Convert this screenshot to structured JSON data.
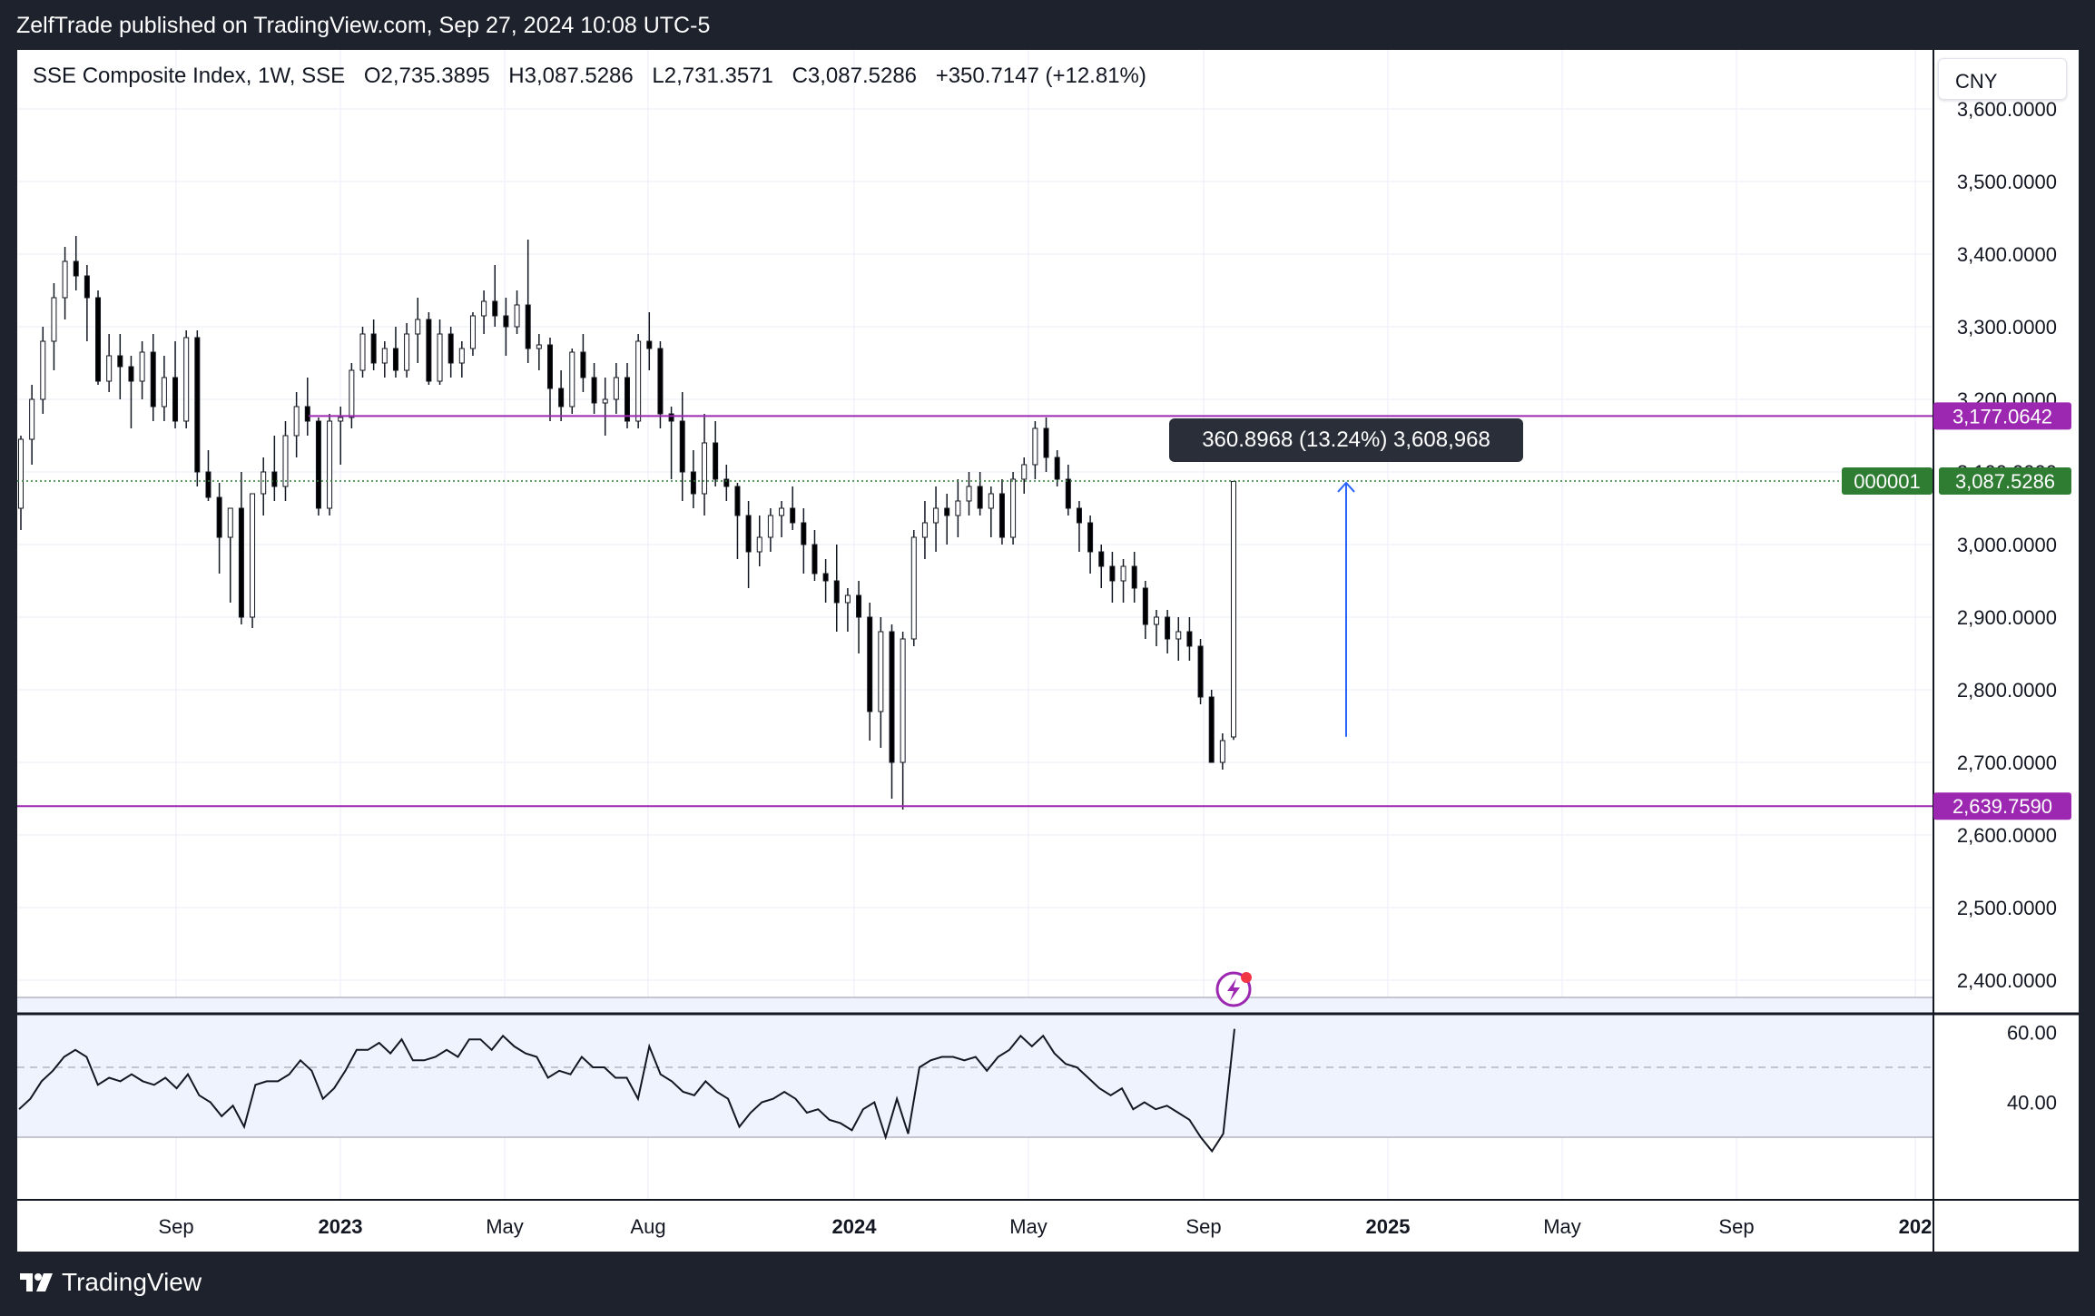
{
  "header": {
    "publish_line": "ZelfTrade published on TradingView.com, Sep 27, 2024 10:08 UTC-5"
  },
  "legend": {
    "symbol": "SSE Composite Index, 1W, SSE",
    "open": "O2,735.3895",
    "high": "H3,087.5286",
    "low": "L2,731.3571",
    "close": "C3,087.5286",
    "change": "+350.7147 (+12.81%)"
  },
  "currency": "CNY",
  "price_tags": {
    "resistance": "3,177.0642",
    "current": "3,087.5286",
    "current_countdown": "000001",
    "support": "2,639.7590"
  },
  "measure_tool": {
    "label": "360.8968 (13.24%) 3,608,968"
  },
  "footer": {
    "brand": "TradingView"
  },
  "colors": {
    "frame_bg": "#1e222d",
    "up_candle": "#ffffff",
    "down_candle": "#000000",
    "level_line": "#9c27b0",
    "current_price": "#2e7d32",
    "measure_arrow": "#2962ff",
    "rsi_band": "#eef3fd"
  },
  "chart_data": [
    {
      "type": "candlestick",
      "title": "SSE Composite Index, 1W, SSE",
      "ylim": [
        2370,
        3565
      ],
      "price_axis_ticks": [
        "3,600.0000",
        "3,500.0000",
        "3,400.0000",
        "3,300.0000",
        "3,200.0000",
        "3,100.0000",
        "3,000.0000",
        "2,900.0000",
        "2,800.0000",
        "2,700.0000",
        "2,600.0000",
        "2,500.0000",
        "2,400.0000"
      ],
      "time_axis_ticks": [
        {
          "label": "Sep",
          "major": false
        },
        {
          "label": "2023",
          "major": true
        },
        {
          "label": "May",
          "major": false
        },
        {
          "label": "Aug",
          "major": false
        },
        {
          "label": "2024",
          "major": true
        },
        {
          "label": "May",
          "major": false
        },
        {
          "label": "Sep",
          "major": false
        },
        {
          "label": "2025",
          "major": true
        },
        {
          "label": "May",
          "major": false
        },
        {
          "label": "Sep",
          "major": false
        },
        {
          "label": "202",
          "major": true
        }
      ],
      "horizontal_levels": [
        3177.0642,
        2639.759
      ],
      "current_price": 3087.5286,
      "candles": [
        [
          3050,
          3150,
          3020,
          3145
        ],
        [
          3145,
          3220,
          3110,
          3200
        ],
        [
          3200,
          3300,
          3180,
          3280
        ],
        [
          3280,
          3360,
          3240,
          3340
        ],
        [
          3340,
          3410,
          3310,
          3390
        ],
        [
          3390,
          3425,
          3350,
          3370
        ],
        [
          3370,
          3385,
          3280,
          3340
        ],
        [
          3340,
          3350,
          3220,
          3225
        ],
        [
          3225,
          3290,
          3210,
          3260
        ],
        [
          3260,
          3290,
          3200,
          3245
        ],
        [
          3245,
          3260,
          3160,
          3225
        ],
        [
          3225,
          3280,
          3200,
          3265
        ],
        [
          3265,
          3290,
          3170,
          3190
        ],
        [
          3190,
          3260,
          3170,
          3230
        ],
        [
          3230,
          3280,
          3160,
          3170
        ],
        [
          3170,
          3295,
          3160,
          3285
        ],
        [
          3285,
          3295,
          3080,
          3100
        ],
        [
          3100,
          3130,
          3060,
          3065
        ],
        [
          3065,
          3085,
          2960,
          3010
        ],
        [
          3010,
          3045,
          2920,
          3050
        ],
        [
          3050,
          3100,
          2890,
          2900
        ],
        [
          2900,
          3070,
          2885,
          3070
        ],
        [
          3070,
          3120,
          3040,
          3100
        ],
        [
          3100,
          3150,
          3060,
          3080
        ],
        [
          3080,
          3170,
          3060,
          3150
        ],
        [
          3150,
          3210,
          3120,
          3190
        ],
        [
          3190,
          3230,
          3150,
          3170
        ],
        [
          3170,
          3175,
          3040,
          3050
        ],
        [
          3050,
          3180,
          3040,
          3170
        ],
        [
          3170,
          3190,
          3110,
          3175
        ],
        [
          3175,
          3250,
          3160,
          3240
        ],
        [
          3240,
          3300,
          3230,
          3290
        ],
        [
          3290,
          3310,
          3240,
          3250
        ],
        [
          3250,
          3280,
          3230,
          3270
        ],
        [
          3270,
          3300,
          3230,
          3240
        ],
        [
          3240,
          3305,
          3230,
          3290
        ],
        [
          3290,
          3340,
          3250,
          3310
        ],
        [
          3310,
          3320,
          3220,
          3225
        ],
        [
          3225,
          3310,
          3220,
          3290
        ],
        [
          3290,
          3300,
          3230,
          3250
        ],
        [
          3250,
          3280,
          3230,
          3270
        ],
        [
          3270,
          3320,
          3260,
          3315
        ],
        [
          3315,
          3350,
          3290,
          3335
        ],
        [
          3335,
          3385,
          3300,
          3315
        ],
        [
          3315,
          3340,
          3260,
          3300
        ],
        [
          3300,
          3350,
          3290,
          3330
        ],
        [
          3330,
          3420,
          3250,
          3270
        ],
        [
          3270,
          3290,
          3240,
          3275
        ],
        [
          3275,
          3285,
          3170,
          3215
        ],
        [
          3215,
          3240,
          3170,
          3190
        ],
        [
          3190,
          3270,
          3180,
          3265
        ],
        [
          3265,
          3290,
          3210,
          3230
        ],
        [
          3230,
          3250,
          3180,
          3195
        ],
        [
          3195,
          3230,
          3150,
          3200
        ],
        [
          3200,
          3250,
          3180,
          3230
        ],
        [
          3230,
          3250,
          3160,
          3170
        ],
        [
          3170,
          3290,
          3160,
          3280
        ],
        [
          3280,
          3320,
          3240,
          3270
        ],
        [
          3270,
          3280,
          3160,
          3180
        ],
        [
          3180,
          3190,
          3090,
          3170
        ],
        [
          3170,
          3210,
          3060,
          3100
        ],
        [
          3100,
          3130,
          3050,
          3070
        ],
        [
          3070,
          3180,
          3040,
          3140
        ],
        [
          3140,
          3170,
          3080,
          3090
        ],
        [
          3090,
          3110,
          3060,
          3080
        ],
        [
          3080,
          3085,
          2980,
          3040
        ],
        [
          3040,
          3060,
          2940,
          2990
        ],
        [
          2990,
          3040,
          2970,
          3010
        ],
        [
          3010,
          3050,
          2990,
          3040
        ],
        [
          3040,
          3060,
          3010,
          3050
        ],
        [
          3050,
          3080,
          3020,
          3030
        ],
        [
          3030,
          3050,
          2960,
          3000
        ],
        [
          3000,
          3020,
          2950,
          2960
        ],
        [
          2960,
          2980,
          2920,
          2950
        ],
        [
          2950,
          3000,
          2880,
          2920
        ],
        [
          2920,
          2940,
          2880,
          2930
        ],
        [
          2930,
          2950,
          2850,
          2900
        ],
        [
          2900,
          2920,
          2730,
          2770
        ],
        [
          2770,
          2900,
          2720,
          2880
        ],
        [
          2880,
          2890,
          2650,
          2700
        ],
        [
          2700,
          2880,
          2635,
          2870
        ],
        [
          2870,
          3020,
          2860,
          3010
        ],
        [
          3010,
          3060,
          2980,
          3030
        ],
        [
          3030,
          3080,
          2990,
          3050
        ],
        [
          3050,
          3070,
          3000,
          3040
        ],
        [
          3040,
          3090,
          3010,
          3060
        ],
        [
          3060,
          3100,
          3040,
          3080
        ],
        [
          3080,
          3100,
          3040,
          3050
        ],
        [
          3050,
          3080,
          3010,
          3070
        ],
        [
          3070,
          3090,
          3000,
          3010
        ],
        [
          3010,
          3100,
          3000,
          3090
        ],
        [
          3090,
          3120,
          3070,
          3110
        ],
        [
          3110,
          3170,
          3090,
          3160
        ],
        [
          3160,
          3175,
          3100,
          3120
        ],
        [
          3120,
          3130,
          3080,
          3090
        ],
        [
          3090,
          3110,
          3040,
          3050
        ],
        [
          3050,
          3060,
          2990,
          3030
        ],
        [
          3030,
          3040,
          2960,
          2990
        ],
        [
          2990,
          3000,
          2940,
          2970
        ],
        [
          2970,
          2990,
          2920,
          2950
        ],
        [
          2950,
          2980,
          2920,
          2970
        ],
        [
          2970,
          2990,
          2920,
          2940
        ],
        [
          2940,
          2950,
          2870,
          2890
        ],
        [
          2890,
          2910,
          2860,
          2900
        ],
        [
          2900,
          2910,
          2850,
          2870
        ],
        [
          2870,
          2900,
          2840,
          2880
        ],
        [
          2880,
          2900,
          2840,
          2860
        ],
        [
          2860,
          2870,
          2780,
          2790
        ],
        [
          2790,
          2800,
          2700,
          2700
        ],
        [
          2700,
          2740,
          2690,
          2730
        ],
        [
          2735,
          3087,
          2731,
          3087
        ]
      ]
    },
    {
      "type": "line",
      "title": "",
      "ylim": [
        25,
        72
      ],
      "axis_ticks": [
        "60.00",
        "40.00"
      ],
      "band": [
        30,
        70
      ],
      "midline": 50,
      "values": [
        38,
        41,
        46,
        49,
        53,
        55,
        53,
        45,
        47,
        46,
        48,
        46,
        45,
        47,
        44,
        48,
        42,
        40,
        36,
        39,
        33,
        45,
        46,
        46,
        48,
        52,
        49,
        41,
        44,
        49,
        55,
        55,
        57,
        54,
        58,
        52,
        52,
        53,
        55,
        53,
        58,
        58,
        55,
        59,
        56,
        54,
        53,
        47,
        49,
        48,
        53,
        50,
        50,
        47,
        47,
        41,
        56,
        48,
        46,
        43,
        42,
        46,
        43,
        41,
        33,
        37,
        40,
        41,
        43,
        41,
        37,
        38,
        35,
        34,
        32,
        38,
        40,
        30,
        41,
        31,
        50,
        52,
        53,
        53,
        52,
        53,
        49,
        53,
        55,
        59,
        56,
        59,
        54,
        51,
        50,
        47,
        44,
        42,
        44,
        38,
        40,
        38,
        39,
        37,
        35,
        30,
        26,
        31,
        61
      ]
    }
  ]
}
